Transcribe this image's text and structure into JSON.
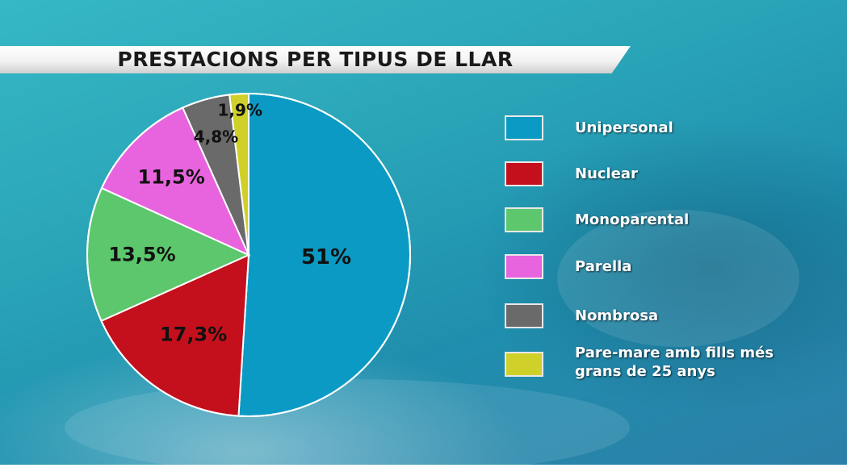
{
  "chart_data": {
    "type": "pie",
    "title": "PRESTACIONS PER TIPUS DE LLAR",
    "categories": [
      "Unipersonal",
      "Nuclear",
      "Monoparental",
      "Parella",
      "Nombrosa",
      "Pare-mare amb fills més grans de 25 anys"
    ],
    "values": [
      51,
      17.3,
      13.5,
      11.5,
      4.8,
      1.9
    ],
    "value_labels": [
      "51%",
      "17,3%",
      "13,5%",
      "11,5%",
      "4,8%",
      "1,9%"
    ],
    "colors": [
      "#0b9ac4",
      "#c4101c",
      "#5cc76c",
      "#e864de",
      "#6a6a6a",
      "#d0d02a"
    ],
    "legend_position": "right"
  }
}
